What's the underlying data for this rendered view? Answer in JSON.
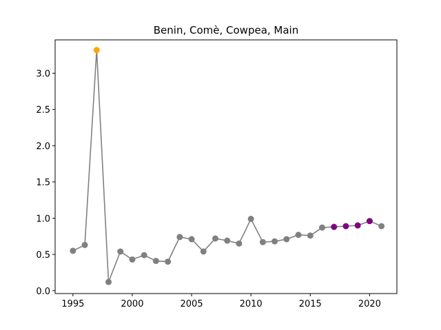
{
  "chart_data": {
    "type": "line",
    "title": "Benin, Comè, Cowpea, Main",
    "xlabel": "",
    "ylabel": "",
    "xlim": [
      1993.5,
      2022.3
    ],
    "ylim": [
      -0.04,
      3.46
    ],
    "x_ticks": [
      1995,
      2000,
      2005,
      2010,
      2015,
      2020
    ],
    "x_tick_labels": [
      "1995",
      "2000",
      "2005",
      "2010",
      "2015",
      "2020"
    ],
    "y_ticks": [
      0.0,
      0.5,
      1.0,
      1.5,
      2.0,
      2.5,
      3.0
    ],
    "y_tick_labels": [
      "0.0",
      "0.5",
      "1.0",
      "1.5",
      "2.0",
      "2.5",
      "3.0"
    ],
    "grid": false,
    "line_color": "#808080",
    "series": [
      {
        "x": [
          1995,
          1996,
          1997,
          1998,
          1999,
          2000,
          2001,
          2002,
          2003,
          2004,
          2005,
          2006,
          2007,
          2008,
          2009,
          2010,
          2011,
          2012,
          2013,
          2014,
          2015,
          2016,
          2017,
          2018,
          2019,
          2020,
          2021
        ],
        "values": [
          0.55,
          0.63,
          3.32,
          0.12,
          0.54,
          0.43,
          0.49,
          0.41,
          0.4,
          0.74,
          0.71,
          0.54,
          0.72,
          0.69,
          0.65,
          0.99,
          0.67,
          0.68,
          0.71,
          0.77,
          0.76,
          0.87,
          0.88,
          0.89,
          0.9,
          0.96,
          0.89
        ],
        "point_colors": [
          "#808080",
          "#808080",
          "#ffa500",
          "#808080",
          "#808080",
          "#808080",
          "#808080",
          "#808080",
          "#808080",
          "#808080",
          "#808080",
          "#808080",
          "#808080",
          "#808080",
          "#808080",
          "#808080",
          "#808080",
          "#808080",
          "#808080",
          "#808080",
          "#808080",
          "#808080",
          "#800080",
          "#800080",
          "#800080",
          "#800080",
          "#808080"
        ]
      }
    ]
  }
}
